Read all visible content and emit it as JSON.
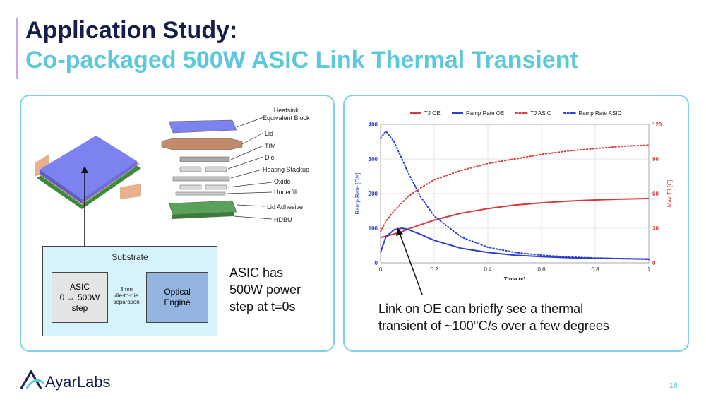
{
  "title": {
    "line1": "Application Study:",
    "line2": "Co-packaged 500W ASIC Link Thermal Transient"
  },
  "left_panel": {
    "stack_labels": [
      "Heatsink\nEquivalent Block",
      "Lid",
      "TIM",
      "Die",
      "Heating Stackup",
      "Oxide",
      "Underfill",
      "Lid Adhesive",
      "HDBU"
    ],
    "substrate": {
      "title": "Substrate",
      "asic": "ASIC\n0 → 500W\nstep",
      "separation": "3mm\ndie-to-die\nseparation",
      "optical_engine": "Optical\nEngine"
    },
    "callout": "ASIC has\n500W power\nstep at t=0s"
  },
  "right_panel": {
    "callout": "Link on OE can briefly see a thermal\ntransient of ~100°C/s over a few degrees"
  },
  "chart_data": {
    "type": "line",
    "xlabel": "Time (s)",
    "ylabel_left": "Ramp Rate [C/s]",
    "ylabel_right": "Max TJ [C]",
    "xlim": [
      0,
      1
    ],
    "ylim_left": [
      0,
      400
    ],
    "ylim_right": [
      0,
      120
    ],
    "x_ticks": [
      "0",
      "0.2",
      "0.4",
      "0.6",
      "0.8",
      "1"
    ],
    "y_left_ticks": [
      "0",
      "100",
      "200",
      "300",
      "400"
    ],
    "y_right_ticks": [
      "0",
      "30",
      "60",
      "90",
      "120"
    ],
    "legend_position": "top",
    "x": [
      0,
      0.02,
      0.05,
      0.08,
      0.1,
      0.15,
      0.2,
      0.3,
      0.4,
      0.5,
      0.6,
      0.7,
      0.8,
      0.9,
      1.0
    ],
    "series": [
      {
        "name": "TJ OE",
        "axis": "right",
        "style": "solid",
        "color": "#d63a3a",
        "values": [
          22,
          23,
          25,
          27,
          29,
          33,
          37,
          43,
          47,
          50,
          52,
          53.5,
          54.5,
          55.2,
          55.8
        ]
      },
      {
        "name": "Ramp Rate OE",
        "axis": "left",
        "style": "solid",
        "color": "#2a3fd1",
        "values": [
          30,
          75,
          95,
          100,
          97,
          82,
          65,
          42,
          30,
          22,
          18,
          15,
          13,
          12,
          11
        ]
      },
      {
        "name": "TJ ASIC",
        "axis": "right",
        "style": "dotted",
        "color": "#d63a3a",
        "values": [
          27,
          36,
          45,
          52,
          57,
          65,
          72,
          80,
          86,
          90,
          94,
          97,
          99,
          101,
          102
        ]
      },
      {
        "name": "Ramp Rate ASIC",
        "axis": "left",
        "style": "dotted",
        "color": "#2a3fd1",
        "values": [
          360,
          380,
          350,
          300,
          265,
          190,
          135,
          75,
          45,
          30,
          22,
          17,
          14,
          12,
          10
        ]
      }
    ]
  },
  "footer": {
    "logo": "AyarLabs",
    "page_number": "16"
  }
}
